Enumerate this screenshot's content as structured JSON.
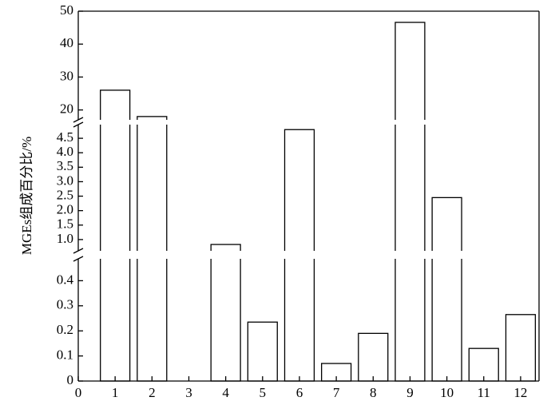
{
  "chart_data": {
    "type": "bar",
    "y_axis_label": "MGEs组成百分比/%",
    "x": [
      1,
      2,
      3,
      4,
      5,
      6,
      7,
      8,
      9,
      10,
      11,
      12
    ],
    "values": [
      26,
      18,
      0,
      0.83,
      0.235,
      4.8,
      0.07,
      0.19,
      46.6,
      2.45,
      0.13,
      0.265
    ],
    "color": "#ffffff",
    "xlim": [
      0,
      12.5
    ],
    "xticks": [
      0,
      1,
      2,
      3,
      4,
      5,
      6,
      7,
      8,
      9,
      10,
      11,
      12
    ],
    "y_segments": [
      {
        "ylim": [
          0,
          0.5
        ],
        "yticks": [
          0,
          0.1,
          0.2,
          0.3,
          0.4
        ]
      },
      {
        "ylim": [
          0.5,
          5
        ],
        "yticks": [
          {
            "value": 1,
            "label": "1.0"
          },
          1.5,
          {
            "value": 2,
            "label": "2.0"
          },
          2.5,
          {
            "value": 3,
            "label": "3.0"
          },
          3.5,
          {
            "value": 4,
            "label": "4.0"
          },
          4.5
        ]
      },
      {
        "ylim": [
          17,
          50
        ],
        "yticks": [
          20,
          30,
          40,
          50
        ]
      }
    ]
  }
}
